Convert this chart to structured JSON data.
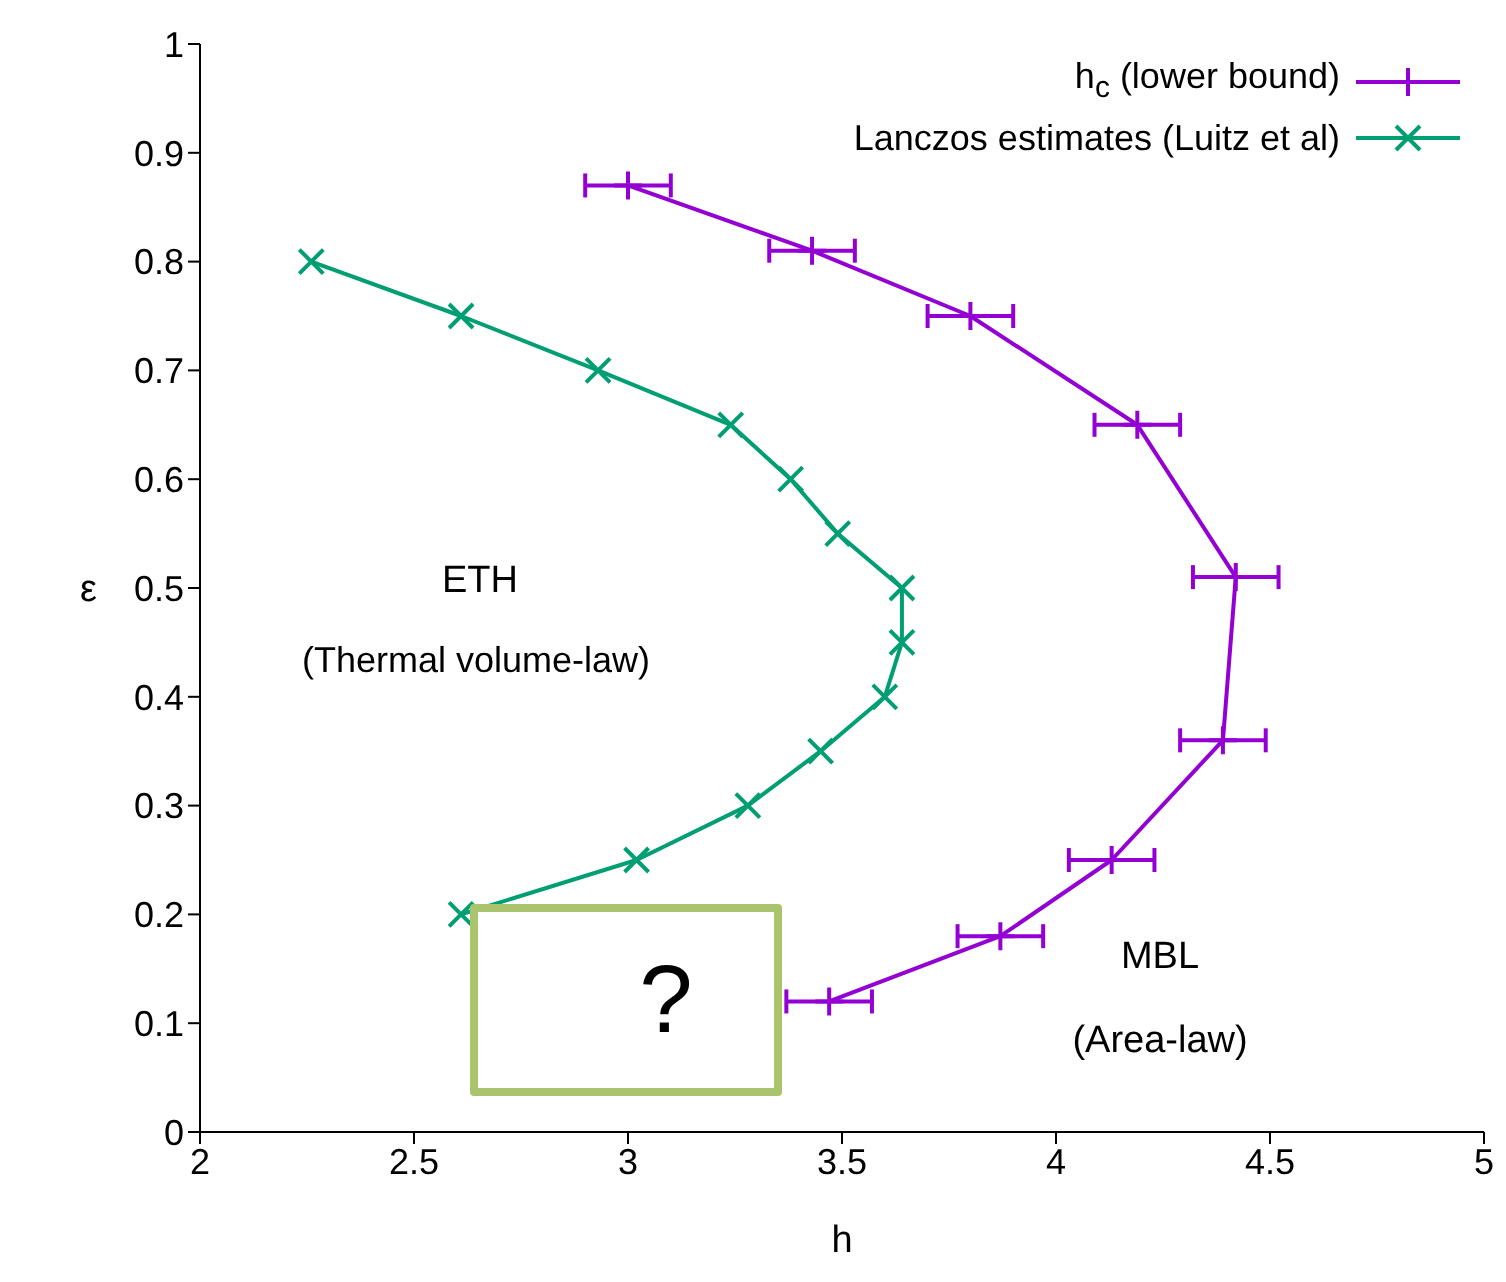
{
  "chart_data": {
    "type": "line",
    "xlabel": "h",
    "ylabel": "ε",
    "xlim": [
      2,
      5
    ],
    "xticks": [
      2,
      2.5,
      3,
      3.5,
      4,
      4.5,
      5
    ],
    "ylim": [
      0,
      1
    ],
    "yticks": [
      0,
      0.1,
      0.2,
      0.3,
      0.4,
      0.5,
      0.6,
      0.7,
      0.8,
      0.9,
      1
    ],
    "grid": false,
    "legend": "top right",
    "line_style": "solid",
    "series": [
      {
        "name": "h$_{c}$ (lower bound)",
        "color": "#9400d3",
        "marker": "plus",
        "x": [
          3.0,
          3.43,
          3.8,
          4.19,
          4.42,
          4.39,
          4.13,
          3.87,
          3.47
        ],
        "values": [
          0.87,
          0.81,
          0.75,
          0.65,
          0.51,
          0.36,
          0.25,
          0.18,
          0.12
        ],
        "xerrors": [
          0.1,
          0.1,
          0.1,
          0.1,
          0.1,
          0.1,
          0.1,
          0.1,
          0.1
        ]
      },
      {
        "name": "Lanczos estimates (Luitz et al)",
        "color": "#009e73",
        "marker": "cross",
        "x": [
          2.26,
          2.61,
          2.93,
          3.24,
          3.38,
          3.49,
          3.64,
          3.64,
          3.6,
          3.45,
          3.28,
          3.02,
          2.61
        ],
        "values": [
          0.8,
          0.75,
          0.7,
          0.65,
          0.6,
          0.55,
          0.5,
          0.45,
          0.4,
          0.35,
          0.3,
          0.25,
          0.2
        ]
      }
    ],
    "annotations": [
      "ETH",
      "(Thermal volume-law)",
      "MBL",
      "(Area-law)",
      "?"
    ]
  }
}
